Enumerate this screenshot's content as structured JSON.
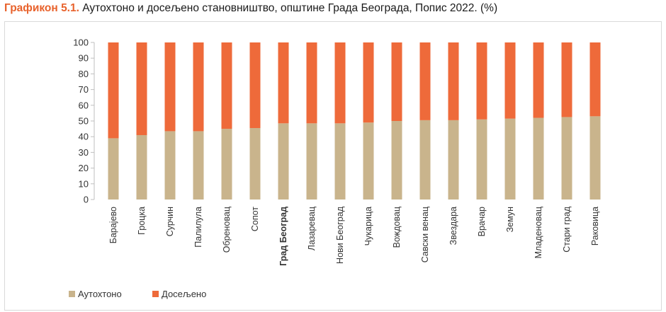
{
  "title": {
    "label": "Графикон 5.1.",
    "text": "Аутохтоно и досељено становништво, општине Града Београда, Попис 2022. (%)"
  },
  "chart_data": {
    "type": "bar",
    "stacked": true,
    "categories": [
      "Барајево",
      "Гроцка",
      "Сурчин",
      "Палилула",
      "Обреновац",
      "Сопот",
      "Град Београд",
      "Лазаревац",
      "Нови Београд",
      "Чукарица",
      "Вождовац",
      "Савски венац",
      "Звездара",
      "Врачар",
      "Земун",
      "Младеновац",
      "Стари град",
      "Раковица"
    ],
    "highlight_category": "Град Београд",
    "series": [
      {
        "name": "Аутохтоно",
        "color": "#c9b48c",
        "values": [
          39,
          41,
          43.5,
          43.5,
          45,
          45.5,
          48.5,
          48.5,
          48.5,
          49,
          50,
          50.5,
          50.5,
          51,
          51.5,
          52,
          52.5,
          53
        ]
      },
      {
        "name": "Досељено",
        "color": "#ee6a3a",
        "values": [
          61,
          59,
          56.5,
          56.5,
          55,
          54.5,
          51.5,
          51.5,
          51.5,
          51,
          50,
          49.5,
          49.5,
          49,
          48.5,
          48,
          47.5,
          47
        ]
      }
    ],
    "y_ticks": [
      "0",
      "10",
      "20",
      "30",
      "40",
      "50",
      "60",
      "70",
      "80",
      "90",
      "100"
    ],
    "ylim": [
      0,
      100
    ],
    "legend_position": "bottom-left"
  }
}
